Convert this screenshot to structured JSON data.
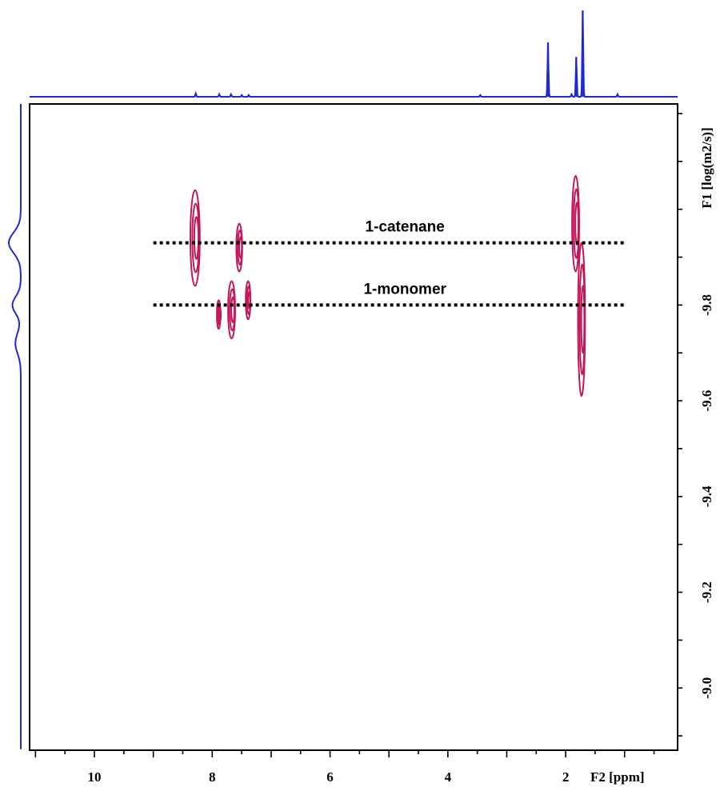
{
  "chart_data": {
    "type": "2d-dosy-contour",
    "xlabel": "F2 [ppm]",
    "ylabel": "F1 [log(m2/s)]",
    "x_axis": {
      "reversed": true,
      "range": [
        11.1,
        0.1
      ],
      "major_ticks": [
        10,
        8,
        6,
        4,
        2
      ],
      "minor_step": 0.5,
      "tick_labels": [
        "10",
        "8",
        "6",
        "4",
        "2"
      ]
    },
    "y_axis": {
      "range": [
        -10.22,
        -8.87
      ],
      "major_ticks": [
        -9.8,
        -9.6,
        -9.4,
        -9.2,
        -9.0
      ],
      "minor_step": 0.1,
      "tick_labels": [
        "-9.8",
        "-9.6",
        "-9.4",
        "-9.2",
        "-9.0"
      ],
      "label_rotation": -90
    },
    "annotations": [
      {
        "text": "1-catenane",
        "y": -9.93,
        "x_from": 9.0,
        "x_to": 1.0,
        "line": "dotted"
      },
      {
        "text": "1-monomer",
        "y": -9.8,
        "x_from": 9.0,
        "x_to": 1.0,
        "line": "dotted"
      }
    ],
    "contour_peaks": [
      {
        "x": 8.28,
        "y": -9.94,
        "dx": 0.08,
        "dy": 0.1
      },
      {
        "x": 7.53,
        "y": -9.92,
        "dx": 0.05,
        "dy": 0.05
      },
      {
        "x": 7.88,
        "y": -9.78,
        "dx": 0.03,
        "dy": 0.03
      },
      {
        "x": 7.66,
        "y": -9.79,
        "dx": 0.06,
        "dy": 0.06
      },
      {
        "x": 7.38,
        "y": -9.81,
        "dx": 0.04,
        "dy": 0.04
      },
      {
        "x": 1.82,
        "y": -9.97,
        "dx": 0.06,
        "dy": 0.1
      },
      {
        "x": 1.72,
        "y": -9.77,
        "dx": 0.06,
        "dy": 0.16
      }
    ],
    "f2_projection": [
      {
        "x": 8.28,
        "h": 0.04
      },
      {
        "x": 7.88,
        "h": 0.03
      },
      {
        "x": 7.68,
        "h": 0.03
      },
      {
        "x": 7.5,
        "h": 0.02
      },
      {
        "x": 7.38,
        "h": 0.02
      },
      {
        "x": 3.45,
        "h": 0.02
      },
      {
        "x": 2.3,
        "h": 0.63
      },
      {
        "x": 1.9,
        "h": 0.03
      },
      {
        "x": 1.82,
        "h": 0.46
      },
      {
        "x": 1.71,
        "h": 1.0
      },
      {
        "x": 1.12,
        "h": 0.03
      }
    ],
    "f1_projection": [
      {
        "y": -9.93,
        "w": 1.0,
        "s": 0.03
      },
      {
        "y": -9.8,
        "w": 0.7,
        "s": 0.025
      },
      {
        "y": -9.72,
        "w": 0.45,
        "s": 0.03
      }
    ],
    "colors": {
      "contour": "#c2185b",
      "projection": "#1f2bd1",
      "frame": "#000000",
      "reference_line": "#000000"
    },
    "grid": false
  }
}
